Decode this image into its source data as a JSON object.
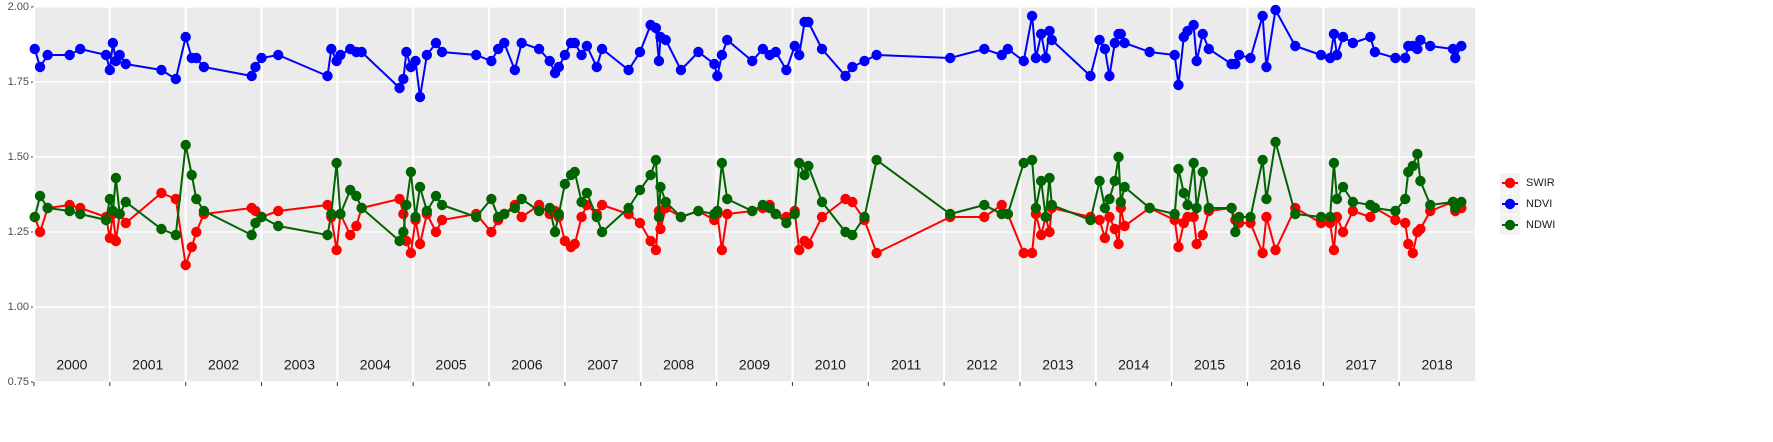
{
  "chart_data": {
    "type": "line",
    "x": [
      2000.01,
      2000.08,
      2000.18,
      2000.47,
      2000.61,
      2000.95,
      2001.0,
      2001.04,
      2001.08,
      2001.13,
      2001.21,
      2001.68,
      2001.87,
      2002.0,
      2002.08,
      2002.14,
      2002.24,
      2002.87,
      2002.92,
      2003.0,
      2003.22,
      2003.87,
      2003.92,
      2003.99,
      2004.04,
      2004.17,
      2004.25,
      2004.32,
      2004.82,
      2004.87,
      2004.91,
      2004.97,
      2005.03,
      2005.09,
      2005.18,
      2005.3,
      2005.38,
      2005.83,
      2006.03,
      2006.12,
      2006.2,
      2006.34,
      2006.43,
      2006.66,
      2006.8,
      2006.87,
      2006.92,
      2007.0,
      2007.08,
      2007.13,
      2007.22,
      2007.29,
      2007.42,
      2007.49,
      2007.84,
      2007.99,
      2008.13,
      2008.2,
      2008.24,
      2008.26,
      2008.33,
      2008.53,
      2008.76,
      2008.97,
      2009.01,
      2009.07,
      2009.14,
      2009.47,
      2009.61,
      2009.7,
      2009.78,
      2009.92,
      2010.03,
      2010.09,
      2010.16,
      2010.21,
      2010.39,
      2010.7,
      2010.79,
      2010.95,
      2011.11,
      2012.08,
      2012.53,
      2012.76,
      2012.84,
      2013.05,
      2013.16,
      2013.21,
      2013.28,
      2013.34,
      2013.39,
      2013.42,
      2013.93,
      2014.05,
      2014.12,
      2014.18,
      2014.25,
      2014.3,
      2014.33,
      2014.38,
      2014.71,
      2015.04,
      2015.09,
      2015.16,
      2015.21,
      2015.29,
      2015.33,
      2015.41,
      2015.49,
      2015.79,
      2015.84,
      2015.89,
      2016.04,
      2016.2,
      2016.25,
      2016.37,
      2016.63,
      2016.97,
      2017.09,
      2017.14,
      2017.18,
      2017.26,
      2017.39,
      2017.62,
      2017.68,
      2017.95,
      2018.08,
      2018.12,
      2018.18,
      2018.24,
      2018.28,
      2018.41,
      2018.71,
      2018.74,
      2018.82
    ],
    "series": [
      {
        "name": "SWIR",
        "color": "#ff0000",
        "values": [
          1.3,
          1.25,
          1.33,
          1.34,
          1.33,
          1.3,
          1.23,
          1.31,
          1.22,
          1.31,
          1.28,
          1.38,
          1.36,
          1.14,
          1.2,
          1.25,
          1.31,
          1.33,
          1.32,
          1.3,
          1.32,
          1.34,
          1.3,
          1.19,
          1.31,
          1.24,
          1.27,
          1.33,
          1.36,
          1.31,
          1.22,
          1.18,
          1.29,
          1.21,
          1.31,
          1.25,
          1.29,
          1.31,
          1.25,
          1.29,
          1.31,
          1.34,
          1.3,
          1.34,
          1.31,
          1.32,
          1.3,
          1.22,
          1.2,
          1.21,
          1.3,
          1.34,
          1.31,
          1.34,
          1.31,
          1.28,
          1.22,
          1.19,
          1.32,
          1.26,
          1.33,
          1.3,
          1.32,
          1.29,
          1.31,
          1.19,
          1.31,
          1.32,
          1.33,
          1.34,
          1.31,
          1.3,
          1.32,
          1.19,
          1.22,
          1.21,
          1.3,
          1.36,
          1.35,
          1.29,
          1.18,
          1.3,
          1.3,
          1.34,
          1.31,
          1.18,
          1.18,
          1.31,
          1.24,
          1.3,
          1.25,
          1.33,
          1.3,
          1.29,
          1.23,
          1.3,
          1.26,
          1.21,
          1.33,
          1.27,
          1.33,
          1.29,
          1.2,
          1.28,
          1.3,
          1.3,
          1.21,
          1.24,
          1.32,
          1.33,
          1.29,
          1.28,
          1.28,
          1.18,
          1.3,
          1.19,
          1.33,
          1.28,
          1.28,
          1.19,
          1.3,
          1.25,
          1.32,
          1.3,
          1.33,
          1.29,
          1.28,
          1.21,
          1.18,
          1.25,
          1.26,
          1.32,
          1.35,
          1.32,
          1.33
        ]
      },
      {
        "name": "NDVI",
        "color": "#0000ff",
        "values": [
          1.86,
          1.8,
          1.84,
          1.84,
          1.86,
          1.84,
          1.79,
          1.88,
          1.82,
          1.84,
          1.81,
          1.79,
          1.76,
          1.9,
          1.83,
          1.83,
          1.8,
          1.77,
          1.8,
          1.83,
          1.84,
          1.77,
          1.86,
          1.82,
          1.84,
          1.86,
          1.85,
          1.85,
          1.73,
          1.76,
          1.85,
          1.8,
          1.82,
          1.7,
          1.84,
          1.88,
          1.85,
          1.84,
          1.82,
          1.86,
          1.88,
          1.79,
          1.88,
          1.86,
          1.82,
          1.78,
          1.8,
          1.84,
          1.88,
          1.88,
          1.84,
          1.87,
          1.8,
          1.86,
          1.79,
          1.85,
          1.94,
          1.93,
          1.82,
          1.9,
          1.89,
          1.79,
          1.85,
          1.81,
          1.77,
          1.84,
          1.89,
          1.82,
          1.86,
          1.84,
          1.85,
          1.79,
          1.87,
          1.84,
          1.95,
          1.95,
          1.86,
          1.77,
          1.8,
          1.82,
          1.84,
          1.83,
          1.86,
          1.84,
          1.86,
          1.82,
          1.97,
          1.83,
          1.91,
          1.83,
          1.92,
          1.89,
          1.77,
          1.89,
          1.86,
          1.77,
          1.88,
          1.91,
          1.91,
          1.88,
          1.85,
          1.84,
          1.74,
          1.9,
          1.92,
          1.94,
          1.82,
          1.91,
          1.86,
          1.81,
          1.81,
          1.84,
          1.83,
          1.97,
          1.8,
          1.99,
          1.87,
          1.84,
          1.83,
          1.91,
          1.84,
          1.9,
          1.88,
          1.9,
          1.85,
          1.83,
          1.83,
          1.87,
          1.87,
          1.86,
          1.89,
          1.87,
          1.86,
          1.83,
          1.87
        ]
      },
      {
        "name": "NDWI",
        "color": "#006400",
        "values": [
          1.3,
          1.37,
          1.33,
          1.32,
          1.31,
          1.29,
          1.36,
          1.32,
          1.43,
          1.31,
          1.35,
          1.26,
          1.24,
          1.54,
          1.44,
          1.36,
          1.32,
          1.24,
          1.28,
          1.3,
          1.27,
          1.24,
          1.31,
          1.48,
          1.31,
          1.39,
          1.37,
          1.33,
          1.22,
          1.25,
          1.34,
          1.45,
          1.3,
          1.4,
          1.32,
          1.37,
          1.34,
          1.3,
          1.36,
          1.3,
          1.31,
          1.33,
          1.36,
          1.32,
          1.33,
          1.25,
          1.31,
          1.41,
          1.44,
          1.45,
          1.35,
          1.38,
          1.3,
          1.25,
          1.33,
          1.39,
          1.44,
          1.49,
          1.3,
          1.4,
          1.35,
          1.3,
          1.32,
          1.31,
          1.32,
          1.48,
          1.36,
          1.32,
          1.34,
          1.33,
          1.31,
          1.28,
          1.31,
          1.48,
          1.44,
          1.47,
          1.35,
          1.25,
          1.24,
          1.3,
          1.49,
          1.31,
          1.34,
          1.31,
          1.31,
          1.48,
          1.49,
          1.33,
          1.42,
          1.3,
          1.43,
          1.34,
          1.29,
          1.42,
          1.33,
          1.36,
          1.42,
          1.5,
          1.35,
          1.4,
          1.33,
          1.31,
          1.46,
          1.38,
          1.34,
          1.48,
          1.33,
          1.45,
          1.33,
          1.33,
          1.25,
          1.3,
          1.3,
          1.49,
          1.36,
          1.55,
          1.31,
          1.3,
          1.3,
          1.48,
          1.36,
          1.4,
          1.35,
          1.34,
          1.33,
          1.32,
          1.36,
          1.45,
          1.47,
          1.51,
          1.42,
          1.34,
          1.35,
          1.33,
          1.35
        ]
      }
    ],
    "xlim": [
      2000,
      2019
    ],
    "xticks": [
      2000,
      2001,
      2002,
      2003,
      2004,
      2005,
      2006,
      2007,
      2008,
      2009,
      2010,
      2011,
      2012,
      2013,
      2014,
      2015,
      2016,
      2017,
      2018
    ],
    "ylim": [
      0.75,
      2.0
    ],
    "yticks": [
      {
        "value": 2.0,
        "label": "2.00"
      },
      {
        "value": 1.75,
        "label": "1.75"
      },
      {
        "value": 1.5,
        "label": "1.50"
      },
      {
        "value": 1.25,
        "label": "1.25"
      },
      {
        "value": 1.0,
        "label": "1.00"
      },
      {
        "value": 0.75,
        "label": "0.75"
      }
    ],
    "grid": true,
    "legend": "right"
  }
}
